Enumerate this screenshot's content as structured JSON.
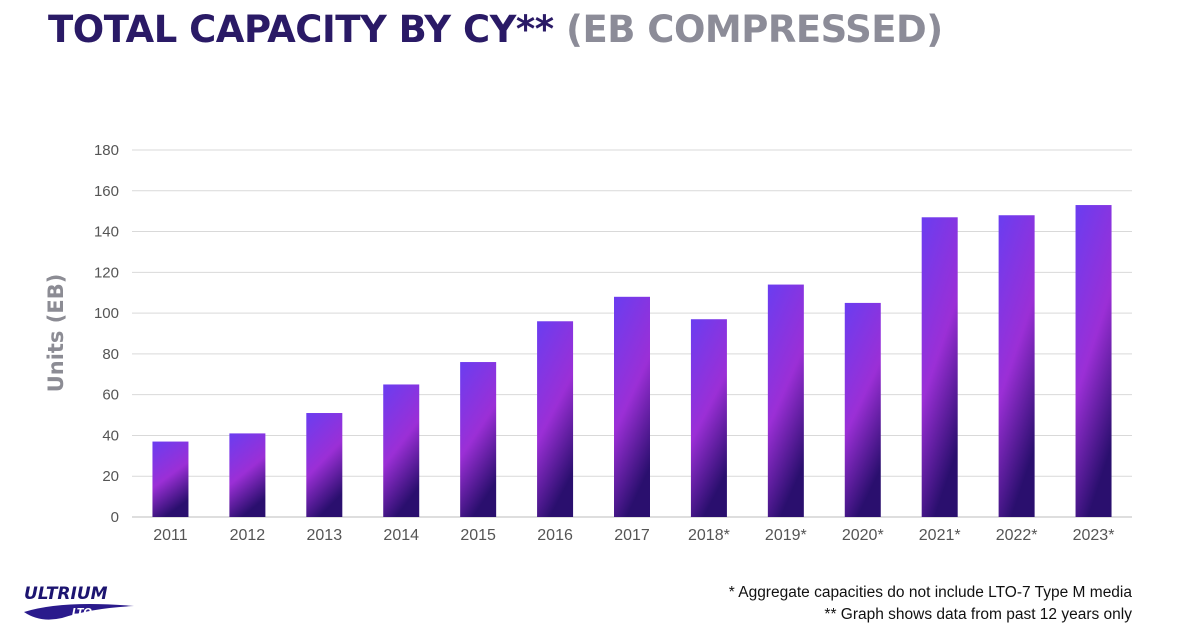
{
  "header": {
    "title_main": "TOTAL CAPACITY BY CY**",
    "title_sub": "(EB COMPRESSED)"
  },
  "logo": {
    "text_top": "ULTRIUM",
    "text_bottom": "LTO"
  },
  "footnotes": [
    "* Aggregate capacities do not include LTO-7 Type M media",
    "** Graph shows data from past 12 years only"
  ],
  "colors": {
    "title_main": "#2a1a66",
    "title_sub": "#8c8c98",
    "bar_top": "#6a3df0",
    "bar_mid": "#9b2fd6",
    "bar_bottom": "#2a0f6e",
    "grid": "#d9d9d9",
    "tick_text": "#555555"
  },
  "chart_data": {
    "type": "bar",
    "title": "TOTAL CAPACITY BY CY** (EB COMPRESSED)",
    "xlabel": "",
    "ylabel": "Units (EB)",
    "categories": [
      "2011",
      "2012",
      "2013",
      "2014",
      "2015",
      "2016",
      "2017",
      "2018*",
      "2019*",
      "2020*",
      "2021*",
      "2022*",
      "2023*"
    ],
    "values": [
      37,
      41,
      51,
      65,
      76,
      96,
      108,
      97,
      114,
      105,
      147,
      148,
      153
    ],
    "ylim": [
      0,
      180
    ],
    "yticks": [
      0,
      20,
      40,
      60,
      80,
      100,
      120,
      140,
      160,
      180
    ],
    "grid": true,
    "legend": "none"
  }
}
